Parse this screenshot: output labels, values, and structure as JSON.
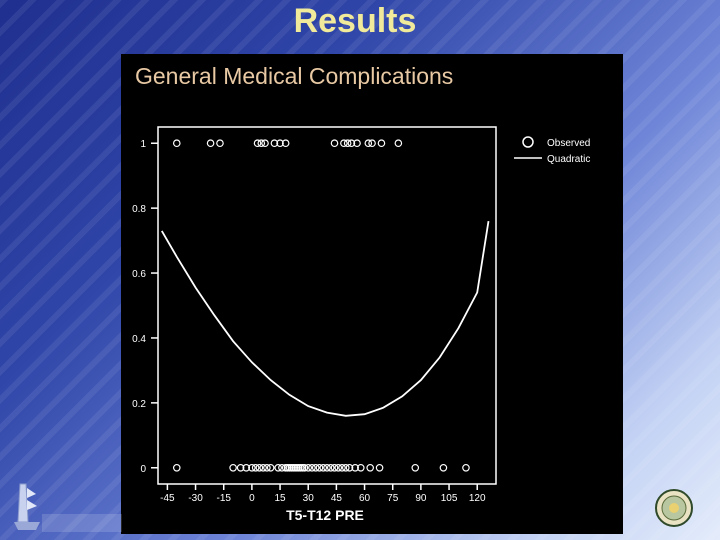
{
  "slide": {
    "title": "Results"
  },
  "chart_data": {
    "type": "scatter",
    "title": "General Medical Complications",
    "xlabel": "T5-T12 PRE",
    "ylabel": "",
    "xlim": [
      -50,
      130
    ],
    "ylim": [
      -0.05,
      1.05
    ],
    "x_ticks": [
      -45,
      -30,
      -15,
      0,
      15,
      30,
      45,
      60,
      75,
      90,
      105,
      120
    ],
    "y_ticks": [
      0,
      0.2,
      0.4,
      0.6,
      0.8,
      1
    ],
    "y_tick_labels": [
      "0",
      "0.2",
      "0.4",
      "0.6",
      "0.8",
      "1"
    ],
    "grid": false,
    "legend_position": "top-right",
    "legend": [
      "Observed",
      "Quadratic"
    ],
    "series": [
      {
        "name": "Observed",
        "type": "scatter",
        "x": [
          -40,
          -22,
          -17,
          3,
          5,
          7,
          12,
          15,
          18,
          44,
          49,
          51,
          53,
          56,
          62,
          64,
          69,
          78,
          -40,
          -10,
          -6,
          -3,
          0,
          2,
          4,
          6,
          8,
          10,
          14,
          16,
          18,
          19,
          20,
          21,
          22,
          23,
          24,
          25,
          26,
          27,
          28,
          30,
          32,
          34,
          36,
          38,
          40,
          42,
          44,
          46,
          48,
          50,
          52,
          55,
          58,
          63,
          68,
          87,
          102,
          114
        ],
        "y": [
          1,
          1,
          1,
          1,
          1,
          1,
          1,
          1,
          1,
          1,
          1,
          1,
          1,
          1,
          1,
          1,
          1,
          1,
          0,
          0,
          0,
          0,
          0,
          0,
          0,
          0,
          0,
          0,
          0,
          0,
          0,
          0,
          0,
          0,
          0,
          0,
          0,
          0,
          0,
          0,
          0,
          0,
          0,
          0,
          0,
          0,
          0,
          0,
          0,
          0,
          0,
          0,
          0,
          0,
          0,
          0,
          0,
          0,
          0,
          0
        ]
      },
      {
        "name": "Quadratic",
        "type": "line",
        "x": [
          -48,
          -40,
          -30,
          -20,
          -10,
          0,
          10,
          20,
          30,
          40,
          50,
          60,
          70,
          80,
          90,
          100,
          110,
          120,
          126
        ],
        "y": [
          0.73,
          0.65,
          0.555,
          0.47,
          0.39,
          0.325,
          0.27,
          0.225,
          0.19,
          0.17,
          0.16,
          0.165,
          0.185,
          0.22,
          0.27,
          0.34,
          0.43,
          0.54,
          0.76
        ]
      }
    ]
  }
}
